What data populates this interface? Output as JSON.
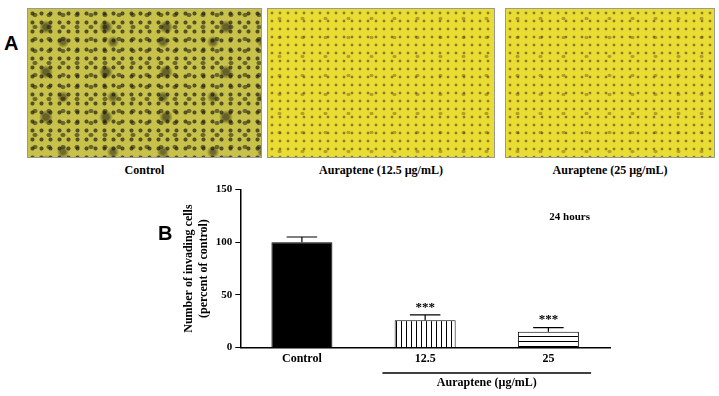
{
  "panel_a": {
    "letter": "A",
    "images": [
      "Control",
      "Auraptene (12.5 µg/mL)",
      "Auraptene (25 µg/mL)"
    ]
  },
  "chart_data": {
    "panel_letter": "B",
    "type": "bar",
    "categories": [
      "Control",
      "12.5",
      "25"
    ],
    "values": [
      100,
      26,
      15
    ],
    "errors": [
      5,
      5,
      4
    ],
    "significance": [
      null,
      "***",
      "***"
    ],
    "colors": [
      "#000000",
      "#000000",
      "#000000"
    ],
    "ylabel": [
      "Number of invading cells",
      "(percent of control)"
    ],
    "group_label": "Auraptene (µg/mL)",
    "annotation": "24 hours",
    "ylim": [
      0,
      150
    ],
    "yticks": [
      0,
      50,
      100,
      150
    ],
    "grid": false
  }
}
